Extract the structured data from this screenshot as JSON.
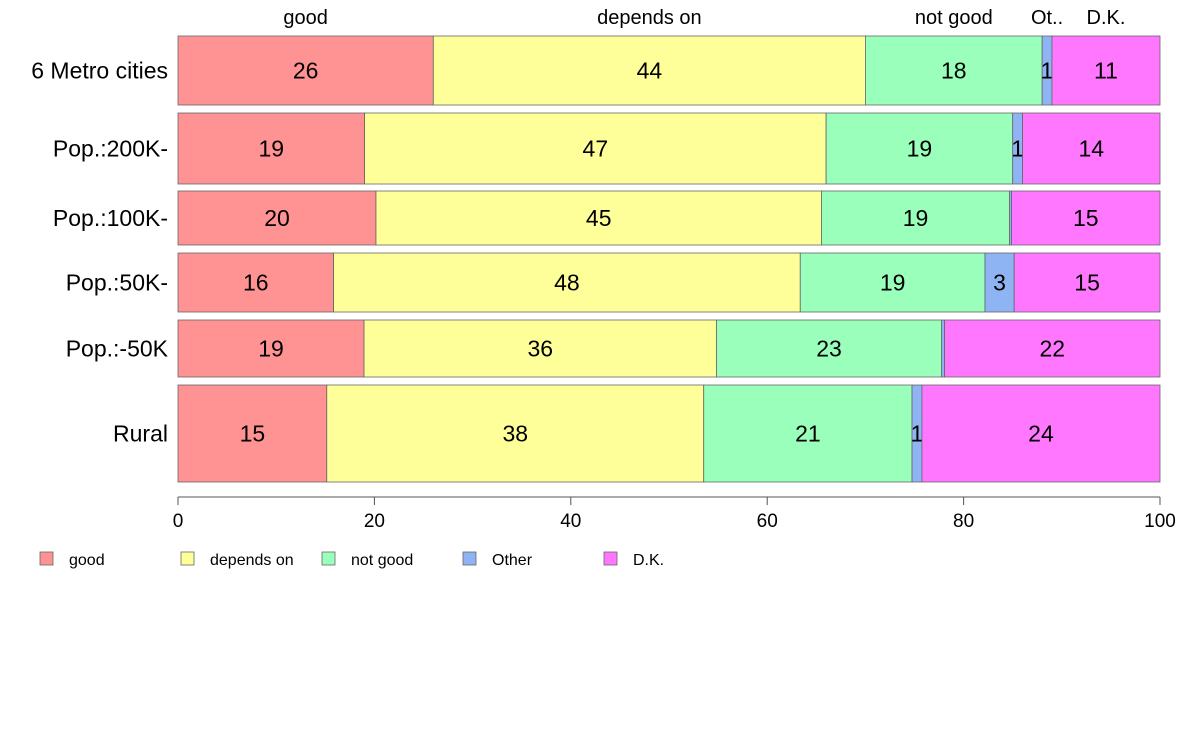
{
  "chart_data": {
    "type": "bar",
    "orientation": "horizontal",
    "stacked": true,
    "categories": [
      "6 Metro cities",
      "Pop.:200K-",
      "Pop.:100K-",
      "Pop.:50K-",
      "Pop.:-50K",
      "Rural"
    ],
    "series": [
      {
        "name": "good",
        "color": "#ff9393",
        "values": [
          26,
          19,
          20,
          16,
          19,
          15
        ],
        "labels": [
          "26",
          "19",
          "20",
          "16",
          "19",
          "15"
        ]
      },
      {
        "name": "depends on",
        "color": "#ffff99",
        "values": [
          44,
          47,
          45,
          48,
          36,
          38
        ],
        "labels": [
          "44",
          "47",
          "45",
          "48",
          "36",
          "38"
        ]
      },
      {
        "name": "not good",
        "color": "#99ffbb",
        "values": [
          18,
          19,
          19,
          19,
          23,
          21
        ],
        "labels": [
          "18",
          "19",
          "19",
          "19",
          "23",
          "21"
        ]
      },
      {
        "name": "Other",
        "color": "#8fb4f4",
        "values": [
          1,
          1,
          0.2,
          3,
          0.3,
          1
        ],
        "labels": [
          "1",
          "1",
          "",
          "3",
          "",
          "1"
        ]
      },
      {
        "name": "D.K.",
        "color": "#ff77ff",
        "values": [
          11,
          14,
          15,
          15,
          22,
          24
        ],
        "labels": [
          "11",
          "14",
          "15",
          "15",
          "22",
          "24"
        ]
      }
    ],
    "top_labels": [
      "good",
      "depends on",
      "not good",
      "Ot..",
      "D.K."
    ],
    "xlim": [
      0,
      100
    ],
    "xticks": [
      "0",
      "20",
      "40",
      "60",
      "80",
      "100"
    ],
    "grid": false,
    "legend_position": "bottom-left"
  }
}
